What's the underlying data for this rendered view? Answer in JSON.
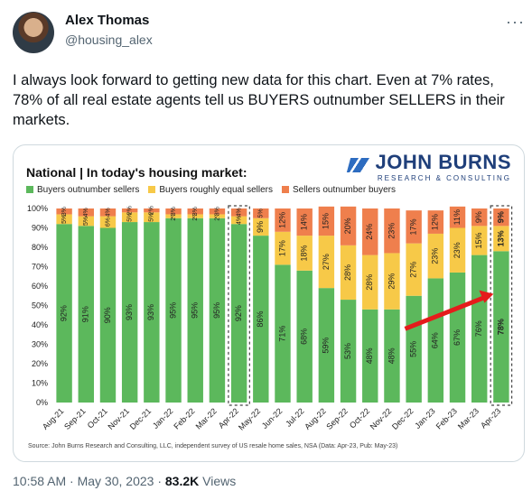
{
  "tweet": {
    "author_name": "Alex Thomas",
    "handle": "@housing_alex",
    "more_icon": "more-icon",
    "text": "I always look forward to getting new data for this chart. Even at 7% rates, 78% of all real estate agents tell us BUYERS outnumber SELLERS in their markets.",
    "time": "10:58 AM · May 30, 2023 · ",
    "views_count": "83.2K",
    "views_label": " Views"
  },
  "card": {
    "title": "National | In today's housing market:",
    "brand_main": "JOHN BURNS",
    "brand_sub": "RESEARCH & CONSULTING",
    "source": "Source: John Burns Research and Consulting, LLC, independent survey of US resale home sales, NSA (Data: Apr-23, Pub: May-23)"
  },
  "chart_data": {
    "type": "bar",
    "stacked": true,
    "categories": [
      "Aug-21",
      "Sep-21",
      "Oct-21",
      "Nov-21",
      "Dec-21",
      "Jan-22",
      "Feb-22",
      "Mar-22",
      "Apr-22",
      "May-22",
      "Jun-22",
      "Jul-22",
      "Aug-22",
      "Sep-22",
      "Oct-22",
      "Nov-22",
      "Dec-22",
      "Jan-23",
      "Feb-23",
      "Mar-23",
      "Apr-23"
    ],
    "series": [
      {
        "name": "Buyers outnumber sellers",
        "color": "#5cb85c",
        "values": [
          92,
          91,
          90,
          93,
          93,
          95,
          95,
          95,
          92,
          86,
          71,
          68,
          59,
          53,
          48,
          48,
          55,
          64,
          67,
          76,
          78
        ]
      },
      {
        "name": "Buyers roughly equal sellers",
        "color": "#f7c948",
        "values": [
          5,
          5,
          6,
          5,
          5,
          2,
          2,
          2,
          4,
          9,
          17,
          18,
          27,
          28,
          28,
          29,
          27,
          23,
          23,
          15,
          13
        ]
      },
      {
        "name": "Sellers outnumber buyers",
        "color": "#ef7f4d",
        "values": [
          3,
          4,
          4,
          2,
          2,
          3,
          3,
          3,
          4,
          5,
          12,
          14,
          15,
          20,
          24,
          23,
          17,
          12,
          11,
          9,
          9
        ]
      }
    ],
    "ylim": [
      0,
      100
    ],
    "yticks": [
      "0%",
      "10%",
      "20%",
      "30%",
      "40%",
      "50%",
      "60%",
      "70%",
      "80%",
      "90%",
      "100%"
    ],
    "highlighted": [
      "Apr-22",
      "Apr-23"
    ],
    "arrow_note": "trend-arrow"
  }
}
